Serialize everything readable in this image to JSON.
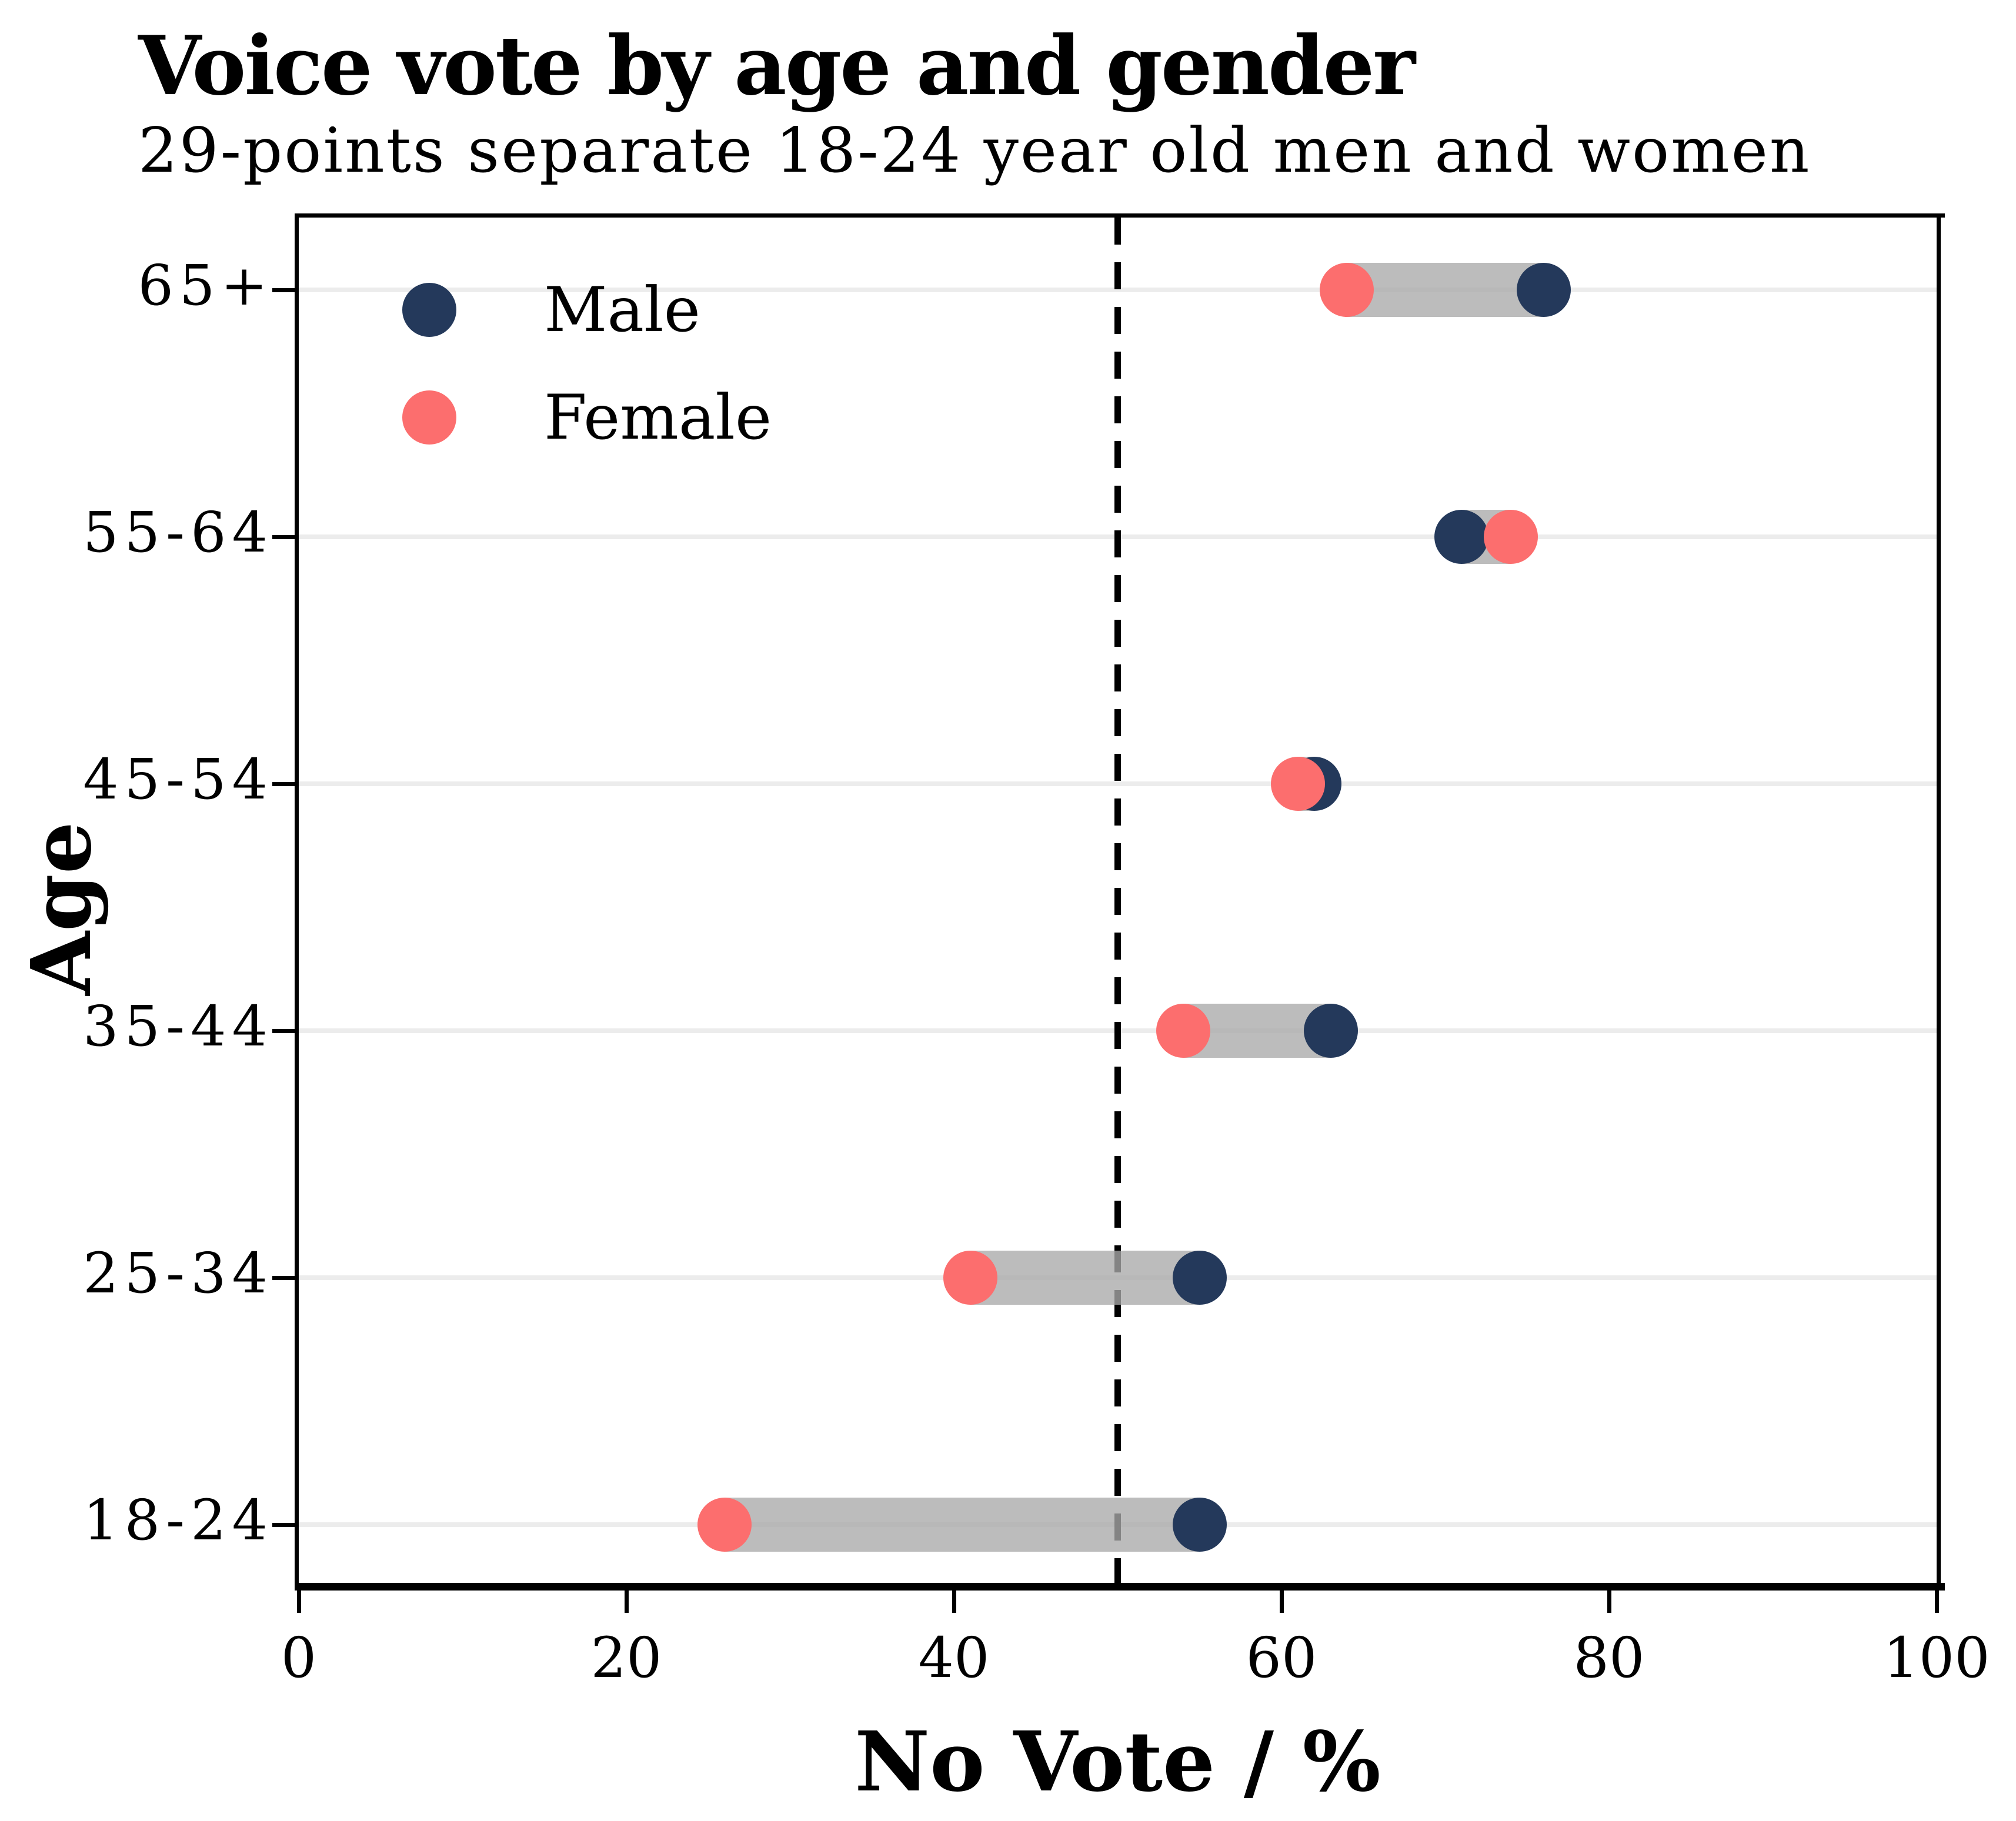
{
  "title": "Voice vote by age and gender",
  "subtitle": "29-points separate 18-24 year old men and women",
  "legend": {
    "male_label": "Male",
    "female_label": "Female"
  },
  "colors": {
    "male": "#24395b",
    "female": "#fc6e6e",
    "connector": "#a9a9a9",
    "gridline": "#ececec",
    "reference_line": "#000000"
  },
  "chart_data": {
    "type": "scatter",
    "variant": "dumbbell",
    "title": "Voice vote by age and gender",
    "subtitle": "29-points separate 18-24 year old men and women",
    "categories": [
      "65+",
      "55-64",
      "45-54",
      "35-44",
      "25-34",
      "18-24"
    ],
    "series": [
      {
        "name": "Male",
        "values": [
          76,
          71,
          62,
          63,
          55,
          55
        ]
      },
      {
        "name": "Female",
        "values": [
          64,
          74,
          61,
          54,
          41,
          26
        ]
      }
    ],
    "xlabel": "No Vote / %",
    "ylabel": "Age",
    "xlim": [
      0,
      100
    ],
    "xticks": [
      0,
      20,
      40,
      60,
      80,
      100
    ],
    "reference_line_x": 50,
    "grid": "horizontal",
    "legend_position": "top-left"
  }
}
